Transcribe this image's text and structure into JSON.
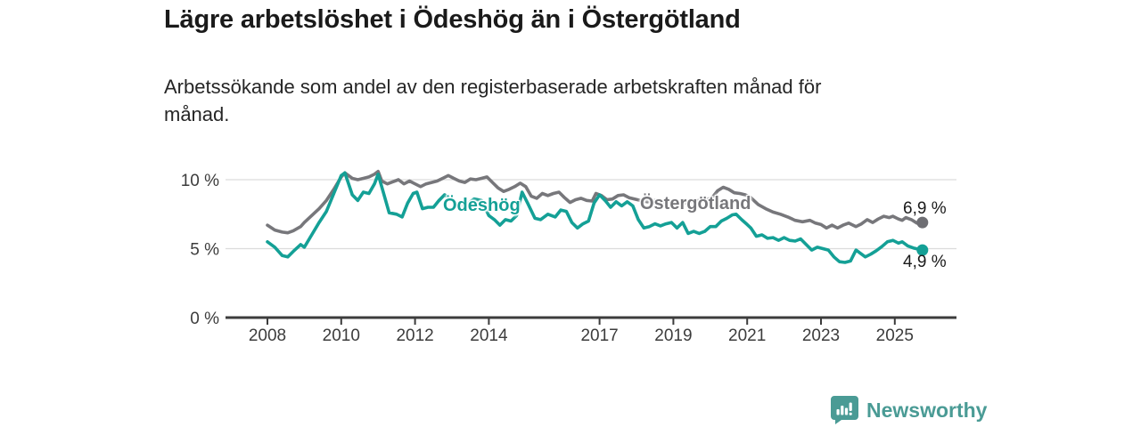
{
  "header": {
    "title": "Lägre arbetslöshet i Ödeshög än i Östergötland",
    "subtitle_lines": [
      "Arbetssökande som andel av den registerbaserade arbetskraften månad för",
      "månad."
    ]
  },
  "footer": {
    "brand": "Newsworthy",
    "brand_color": "#4a9b95"
  },
  "colors": {
    "accent_teal": "#14a096",
    "line_gray": "#77777b",
    "axis": "#3c3c3c",
    "gridline": "#dcdcdc",
    "text": "#1a1a1a"
  },
  "chart_data": {
    "type": "line",
    "title": "Lägre arbetslöshet i Ödeshög än i Östergötland",
    "subtitle": "Arbetssökande som andel av den registerbaserade arbetskraften månad för månad.",
    "unit": "%",
    "grid": "horizontal",
    "xlim": [
      2006.9,
      2026.7
    ],
    "ylim": [
      0,
      11
    ],
    "x_ticks": [
      2008,
      2010,
      2012,
      2014,
      2017,
      2019,
      2021,
      2023,
      2025
    ],
    "x_tick_labels": [
      "2008",
      "2010",
      "2012",
      "2014",
      "2017",
      "2019",
      "2021",
      "2023",
      "2025"
    ],
    "y_ticks": [
      0,
      5,
      10
    ],
    "y_tick_labels": [
      "0 %",
      "5 %",
      "10 %"
    ],
    "series": [
      {
        "name": "Ödeshög",
        "color": "#14a096",
        "end_label": "4,9 %",
        "end_value": 4.9,
        "points": [
          [
            2008.0,
            5.5
          ],
          [
            2008.2,
            5.1
          ],
          [
            2008.4,
            4.5
          ],
          [
            2008.55,
            4.4
          ],
          [
            2008.7,
            4.8
          ],
          [
            2008.9,
            5.3
          ],
          [
            2009.0,
            5.1
          ],
          [
            2009.2,
            6.0
          ],
          [
            2009.4,
            6.9
          ],
          [
            2009.6,
            7.7
          ],
          [
            2009.8,
            9.0
          ],
          [
            2010.0,
            10.3
          ],
          [
            2010.1,
            10.5
          ],
          [
            2010.3,
            8.9
          ],
          [
            2010.45,
            8.5
          ],
          [
            2010.6,
            9.1
          ],
          [
            2010.75,
            9.0
          ],
          [
            2010.9,
            9.7
          ],
          [
            2011.0,
            10.4
          ],
          [
            2011.15,
            9.0
          ],
          [
            2011.3,
            7.6
          ],
          [
            2011.5,
            7.5
          ],
          [
            2011.65,
            7.3
          ],
          [
            2011.8,
            8.3
          ],
          [
            2011.95,
            9.0
          ],
          [
            2012.05,
            9.1
          ],
          [
            2012.2,
            7.9
          ],
          [
            2012.35,
            8.0
          ],
          [
            2012.5,
            8.0
          ],
          [
            2012.65,
            8.5
          ],
          [
            2012.8,
            8.9
          ],
          [
            2013.0,
            8.6
          ],
          [
            2013.2,
            8.1
          ],
          [
            2013.4,
            8.2
          ],
          [
            2013.6,
            8.6
          ],
          [
            2013.8,
            8.5
          ],
          [
            2014.0,
            7.4
          ],
          [
            2014.15,
            7.1
          ],
          [
            2014.3,
            6.7
          ],
          [
            2014.45,
            7.1
          ],
          [
            2014.6,
            7.0
          ],
          [
            2014.75,
            7.4
          ],
          [
            2014.9,
            9.1
          ],
          [
            2015.05,
            8.3
          ],
          [
            2015.25,
            7.2
          ],
          [
            2015.4,
            7.1
          ],
          [
            2015.6,
            7.5
          ],
          [
            2015.8,
            7.3
          ],
          [
            2015.95,
            7.8
          ],
          [
            2016.1,
            7.7
          ],
          [
            2016.25,
            6.9
          ],
          [
            2016.4,
            6.5
          ],
          [
            2016.55,
            6.8
          ],
          [
            2016.7,
            7.0
          ],
          [
            2016.85,
            8.3
          ],
          [
            2017.0,
            8.9
          ],
          [
            2017.15,
            8.5
          ],
          [
            2017.3,
            8.0
          ],
          [
            2017.45,
            8.4
          ],
          [
            2017.6,
            8.1
          ],
          [
            2017.75,
            8.4
          ],
          [
            2017.9,
            8.1
          ],
          [
            2018.05,
            7.1
          ],
          [
            2018.2,
            6.5
          ],
          [
            2018.35,
            6.6
          ],
          [
            2018.5,
            6.8
          ],
          [
            2018.65,
            6.65
          ],
          [
            2018.8,
            6.8
          ],
          [
            2018.95,
            6.9
          ],
          [
            2019.1,
            6.5
          ],
          [
            2019.25,
            6.9
          ],
          [
            2019.4,
            6.1
          ],
          [
            2019.55,
            6.25
          ],
          [
            2019.7,
            6.1
          ],
          [
            2019.85,
            6.25
          ],
          [
            2020.0,
            6.6
          ],
          [
            2020.15,
            6.6
          ],
          [
            2020.3,
            7.0
          ],
          [
            2020.45,
            7.2
          ],
          [
            2020.6,
            7.45
          ],
          [
            2020.7,
            7.5
          ],
          [
            2020.85,
            7.1
          ],
          [
            2021.0,
            6.75
          ],
          [
            2021.1,
            6.5
          ],
          [
            2021.25,
            5.9
          ],
          [
            2021.4,
            6.0
          ],
          [
            2021.55,
            5.75
          ],
          [
            2021.7,
            5.8
          ],
          [
            2021.85,
            5.6
          ],
          [
            2022.0,
            5.8
          ],
          [
            2022.15,
            5.6
          ],
          [
            2022.3,
            5.55
          ],
          [
            2022.45,
            5.7
          ],
          [
            2022.6,
            5.3
          ],
          [
            2022.75,
            4.9
          ],
          [
            2022.9,
            5.1
          ],
          [
            2023.05,
            5.0
          ],
          [
            2023.2,
            4.9
          ],
          [
            2023.35,
            4.4
          ],
          [
            2023.5,
            4.05
          ],
          [
            2023.65,
            4.0
          ],
          [
            2023.8,
            4.1
          ],
          [
            2023.95,
            4.9
          ],
          [
            2024.1,
            4.6
          ],
          [
            2024.2,
            4.4
          ],
          [
            2024.35,
            4.6
          ],
          [
            2024.5,
            4.85
          ],
          [
            2024.65,
            5.15
          ],
          [
            2024.8,
            5.5
          ],
          [
            2024.95,
            5.6
          ],
          [
            2025.1,
            5.4
          ],
          [
            2025.2,
            5.5
          ],
          [
            2025.35,
            5.2
          ],
          [
            2025.5,
            5.05
          ],
          [
            2025.65,
            4.95
          ],
          [
            2025.75,
            4.9
          ]
        ]
      },
      {
        "name": "Östergötland",
        "color": "#77777b",
        "dot_color": "#6e6e73",
        "end_label": "6,9 %",
        "end_value": 6.9,
        "points": [
          [
            2008.0,
            6.7
          ],
          [
            2008.2,
            6.35
          ],
          [
            2008.4,
            6.2
          ],
          [
            2008.55,
            6.15
          ],
          [
            2008.7,
            6.3
          ],
          [
            2008.9,
            6.6
          ],
          [
            2009.0,
            6.9
          ],
          [
            2009.2,
            7.4
          ],
          [
            2009.4,
            7.9
          ],
          [
            2009.6,
            8.5
          ],
          [
            2009.8,
            9.3
          ],
          [
            2010.0,
            10.2
          ],
          [
            2010.1,
            10.5
          ],
          [
            2010.3,
            10.1
          ],
          [
            2010.45,
            10.0
          ],
          [
            2010.6,
            10.1
          ],
          [
            2010.75,
            10.2
          ],
          [
            2010.9,
            10.4
          ],
          [
            2011.0,
            10.6
          ],
          [
            2011.1,
            9.9
          ],
          [
            2011.25,
            9.7
          ],
          [
            2011.4,
            9.85
          ],
          [
            2011.55,
            10.0
          ],
          [
            2011.7,
            9.7
          ],
          [
            2011.85,
            9.9
          ],
          [
            2012.0,
            9.7
          ],
          [
            2012.15,
            9.5
          ],
          [
            2012.3,
            9.7
          ],
          [
            2012.45,
            9.8
          ],
          [
            2012.6,
            9.9
          ],
          [
            2012.75,
            10.1
          ],
          [
            2012.9,
            10.3
          ],
          [
            2013.05,
            10.1
          ],
          [
            2013.2,
            9.9
          ],
          [
            2013.35,
            9.8
          ],
          [
            2013.5,
            10.05
          ],
          [
            2013.65,
            10.0
          ],
          [
            2013.8,
            10.1
          ],
          [
            2013.95,
            10.2
          ],
          [
            2014.1,
            9.8
          ],
          [
            2014.25,
            9.4
          ],
          [
            2014.4,
            9.15
          ],
          [
            2014.55,
            9.3
          ],
          [
            2014.7,
            9.5
          ],
          [
            2014.85,
            9.75
          ],
          [
            2015.0,
            9.5
          ],
          [
            2015.15,
            8.8
          ],
          [
            2015.3,
            8.65
          ],
          [
            2015.45,
            9.0
          ],
          [
            2015.6,
            8.85
          ],
          [
            2015.75,
            9.0
          ],
          [
            2015.9,
            9.1
          ],
          [
            2016.05,
            8.7
          ],
          [
            2016.2,
            8.35
          ],
          [
            2016.35,
            8.55
          ],
          [
            2016.5,
            8.65
          ],
          [
            2016.65,
            8.5
          ],
          [
            2016.8,
            8.45
          ],
          [
            2016.9,
            9.0
          ],
          [
            2017.05,
            8.85
          ],
          [
            2017.2,
            8.55
          ],
          [
            2017.35,
            8.6
          ],
          [
            2017.5,
            8.85
          ],
          [
            2017.65,
            8.9
          ],
          [
            2017.8,
            8.7
          ],
          [
            2017.95,
            8.6
          ],
          [
            2018.1,
            8.5
          ],
          [
            2018.3,
            8.4
          ],
          [
            2018.5,
            8.5
          ],
          [
            2018.7,
            8.4
          ],
          [
            2018.9,
            8.35
          ],
          [
            2019.1,
            8.3
          ],
          [
            2019.3,
            8.3
          ],
          [
            2019.5,
            8.4
          ],
          [
            2019.7,
            8.5
          ],
          [
            2019.9,
            8.55
          ],
          [
            2020.05,
            8.7
          ],
          [
            2020.2,
            9.2
          ],
          [
            2020.35,
            9.45
          ],
          [
            2020.5,
            9.3
          ],
          [
            2020.65,
            9.05
          ],
          [
            2020.8,
            9.0
          ],
          [
            2020.95,
            8.9
          ],
          [
            2021.1,
            8.7
          ],
          [
            2021.3,
            8.2
          ],
          [
            2021.5,
            7.9
          ],
          [
            2021.7,
            7.65
          ],
          [
            2021.9,
            7.5
          ],
          [
            2022.1,
            7.3
          ],
          [
            2022.3,
            7.05
          ],
          [
            2022.5,
            6.95
          ],
          [
            2022.7,
            7.05
          ],
          [
            2022.85,
            6.85
          ],
          [
            2023.0,
            6.75
          ],
          [
            2023.15,
            6.5
          ],
          [
            2023.3,
            6.7
          ],
          [
            2023.45,
            6.5
          ],
          [
            2023.6,
            6.7
          ],
          [
            2023.75,
            6.85
          ],
          [
            2023.95,
            6.6
          ],
          [
            2024.1,
            6.8
          ],
          [
            2024.25,
            7.1
          ],
          [
            2024.4,
            6.9
          ],
          [
            2024.55,
            7.15
          ],
          [
            2024.7,
            7.35
          ],
          [
            2024.85,
            7.25
          ],
          [
            2024.95,
            7.35
          ],
          [
            2025.1,
            7.15
          ],
          [
            2025.2,
            7.05
          ],
          [
            2025.3,
            7.25
          ],
          [
            2025.45,
            7.1
          ],
          [
            2025.6,
            6.85
          ],
          [
            2025.75,
            6.9
          ]
        ]
      }
    ],
    "legend_position": "inline-labels"
  }
}
